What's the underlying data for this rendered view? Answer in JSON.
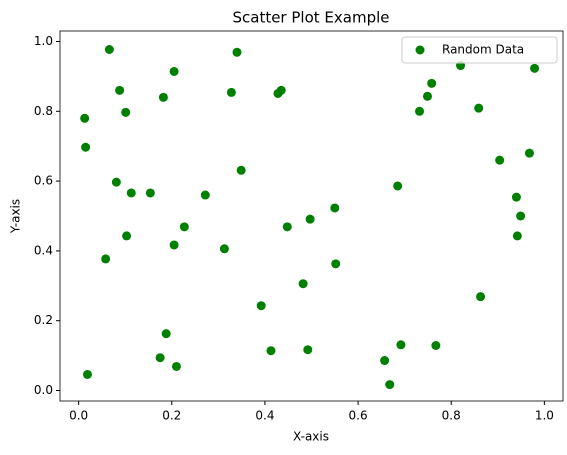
{
  "chart_data": {
    "type": "scatter",
    "title": "Scatter Plot Example",
    "x_label": "X-axis",
    "y_label": "Y-axis",
    "xlim": [
      -0.04,
      1.04
    ],
    "ylim": [
      -0.03,
      1.03
    ],
    "xticks": [
      {
        "value": 0,
        "label": "0.0"
      },
      0.2,
      0.4,
      0.6,
      0.8,
      {
        "value": 1,
        "label": "1.0"
      }
    ],
    "yticks": [
      {
        "value": 0,
        "label": "0.0"
      },
      0.2,
      0.4,
      0.6,
      0.8,
      {
        "value": 1,
        "label": "1.0"
      }
    ],
    "grid": false,
    "legend": "upper right",
    "series": [
      {
        "name": "Random Data",
        "color": "#008000",
        "x": [
          0.066,
          0.013,
          0.015,
          0.088,
          0.101,
          0.182,
          0.205,
          0.34,
          0.328,
          0.428,
          0.435,
          0.349,
          0.081,
          0.113,
          0.154,
          0.272,
          0.227,
          0.103,
          0.205,
          0.313,
          0.058,
          0.448,
          0.497,
          0.55,
          0.552,
          0.482,
          0.392,
          0.188,
          0.175,
          0.21,
          0.413,
          0.492,
          0.019,
          0.685,
          0.732,
          0.749,
          0.758,
          0.82,
          0.859,
          0.904,
          0.968,
          0.979,
          0.94,
          0.949,
          0.942,
          0.863,
          0.657,
          0.668,
          0.692,
          0.767
        ],
        "values": [
          0.977,
          0.78,
          0.697,
          0.86,
          0.797,
          0.84,
          0.914,
          0.969,
          0.854,
          0.851,
          0.86,
          0.631,
          0.597,
          0.566,
          0.566,
          0.56,
          0.469,
          0.443,
          0.417,
          0.406,
          0.377,
          0.469,
          0.491,
          0.523,
          0.363,
          0.306,
          0.243,
          0.163,
          0.094,
          0.069,
          0.114,
          0.117,
          0.046,
          0.586,
          0.8,
          0.843,
          0.88,
          0.931,
          0.809,
          0.66,
          0.68,
          0.923,
          0.554,
          0.5,
          0.443,
          0.269,
          0.086,
          0.017,
          0.131,
          0.129
        ]
      }
    ]
  }
}
